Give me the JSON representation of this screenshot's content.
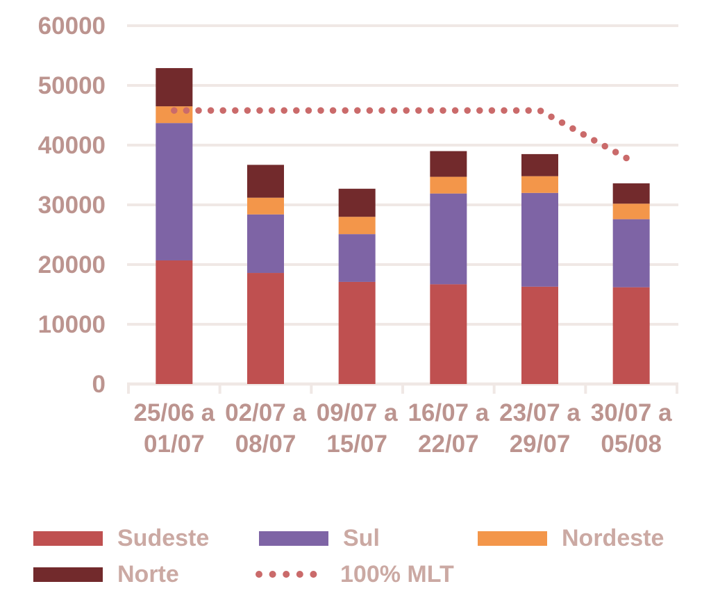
{
  "chart_data": {
    "type": "bar",
    "subtype": "stacked-bars-with-dotted-reference-line",
    "title": "",
    "xlabel": "",
    "ylabel": "",
    "ylim": [
      0,
      60000
    ],
    "y_ticks": [
      0,
      10000,
      20000,
      30000,
      40000,
      50000,
      60000
    ],
    "grid": "horizontal",
    "categories": [
      {
        "line1": "25/06 a",
        "line2": "01/07"
      },
      {
        "line1": "02/07 a",
        "line2": "08/07"
      },
      {
        "line1": "09/07 a",
        "line2": "15/07"
      },
      {
        "line1": "16/07 a",
        "line2": "22/07"
      },
      {
        "line1": "23/07 a",
        "line2": "29/07"
      },
      {
        "line1": "30/07 a",
        "line2": "05/08"
      }
    ],
    "series": [
      {
        "name": "Sudeste",
        "color": "#bf5050",
        "values": [
          20700,
          18600,
          17100,
          16700,
          16300,
          16200
        ]
      },
      {
        "name": "Sul",
        "color": "#7e64a5",
        "values": [
          23000,
          9800,
          8000,
          15200,
          15700,
          11400
        ]
      },
      {
        "name": "Nordeste",
        "color": "#f3964a",
        "values": [
          2800,
          2800,
          2900,
          2800,
          2800,
          2600
        ]
      },
      {
        "name": "Norte",
        "color": "#722a2c",
        "values": [
          6400,
          5500,
          4700,
          4300,
          3700,
          3400
        ]
      }
    ],
    "stack_totals": [
      52900,
      36700,
      32700,
      39000,
      38500,
      33600
    ],
    "line_series": {
      "name": "100% MLT",
      "style": "dotted",
      "color": "#ca6a6a",
      "values": [
        45800,
        45800,
        45800,
        45800,
        45800,
        37400
      ]
    },
    "legend_position": "bottom",
    "legend_rows": [
      [
        "Sudeste",
        "Sul",
        "Nordeste"
      ],
      [
        "Norte",
        "100% MLT"
      ]
    ],
    "colors": {
      "axis_label": "#bc948f",
      "legend_label": "#cba9a3",
      "gridline": "#f0e8e5",
      "mlt_dot": "#ca6a6a"
    }
  }
}
